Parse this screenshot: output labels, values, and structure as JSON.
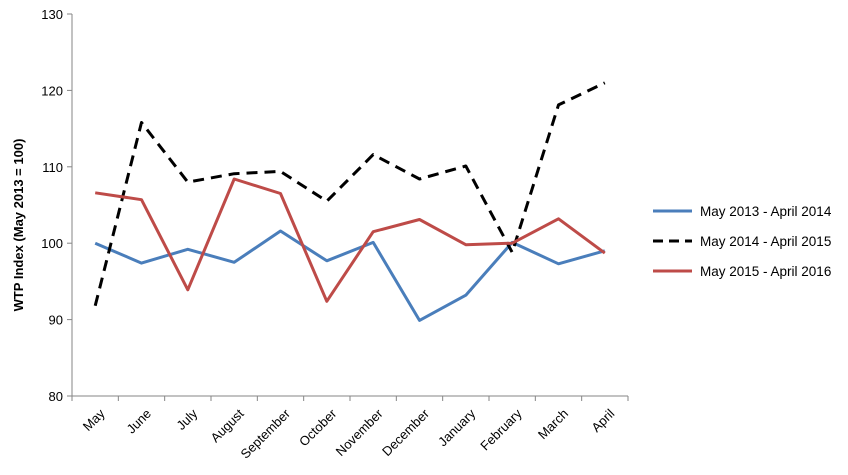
{
  "chart_data": {
    "type": "line",
    "title": "",
    "xlabel": "",
    "ylabel": "WTP Index (May 2013 = 100)",
    "ylim": [
      80,
      130
    ],
    "yticks": [
      80,
      90,
      100,
      110,
      120,
      130
    ],
    "grid": false,
    "legend_position": "right",
    "categories": [
      "May",
      "June",
      "July",
      "August",
      "September",
      "October",
      "November",
      "December",
      "January",
      "February",
      "March",
      "April"
    ],
    "series": [
      {
        "name": "May 2013 - April 2014",
        "color": "#4a7ebb",
        "dash": "solid",
        "values": [
          100.0,
          97.4,
          99.2,
          97.5,
          101.6,
          97.7,
          100.1,
          89.9,
          93.2,
          100.1,
          97.3,
          99.0
        ]
      },
      {
        "name": "May 2014 - April 2015",
        "color": "#000000",
        "dash": "dashed",
        "values": [
          91.8,
          115.8,
          108.0,
          109.1,
          109.4,
          105.5,
          111.6,
          108.4,
          110.1,
          98.8,
          118.1,
          121.0
        ]
      },
      {
        "name": "May 2015 - April 2016",
        "color": "#be4b48",
        "dash": "solid",
        "values": [
          106.6,
          105.7,
          93.9,
          108.4,
          106.5,
          92.4,
          101.5,
          103.1,
          99.8,
          100.0,
          103.2,
          98.7
        ]
      }
    ]
  }
}
